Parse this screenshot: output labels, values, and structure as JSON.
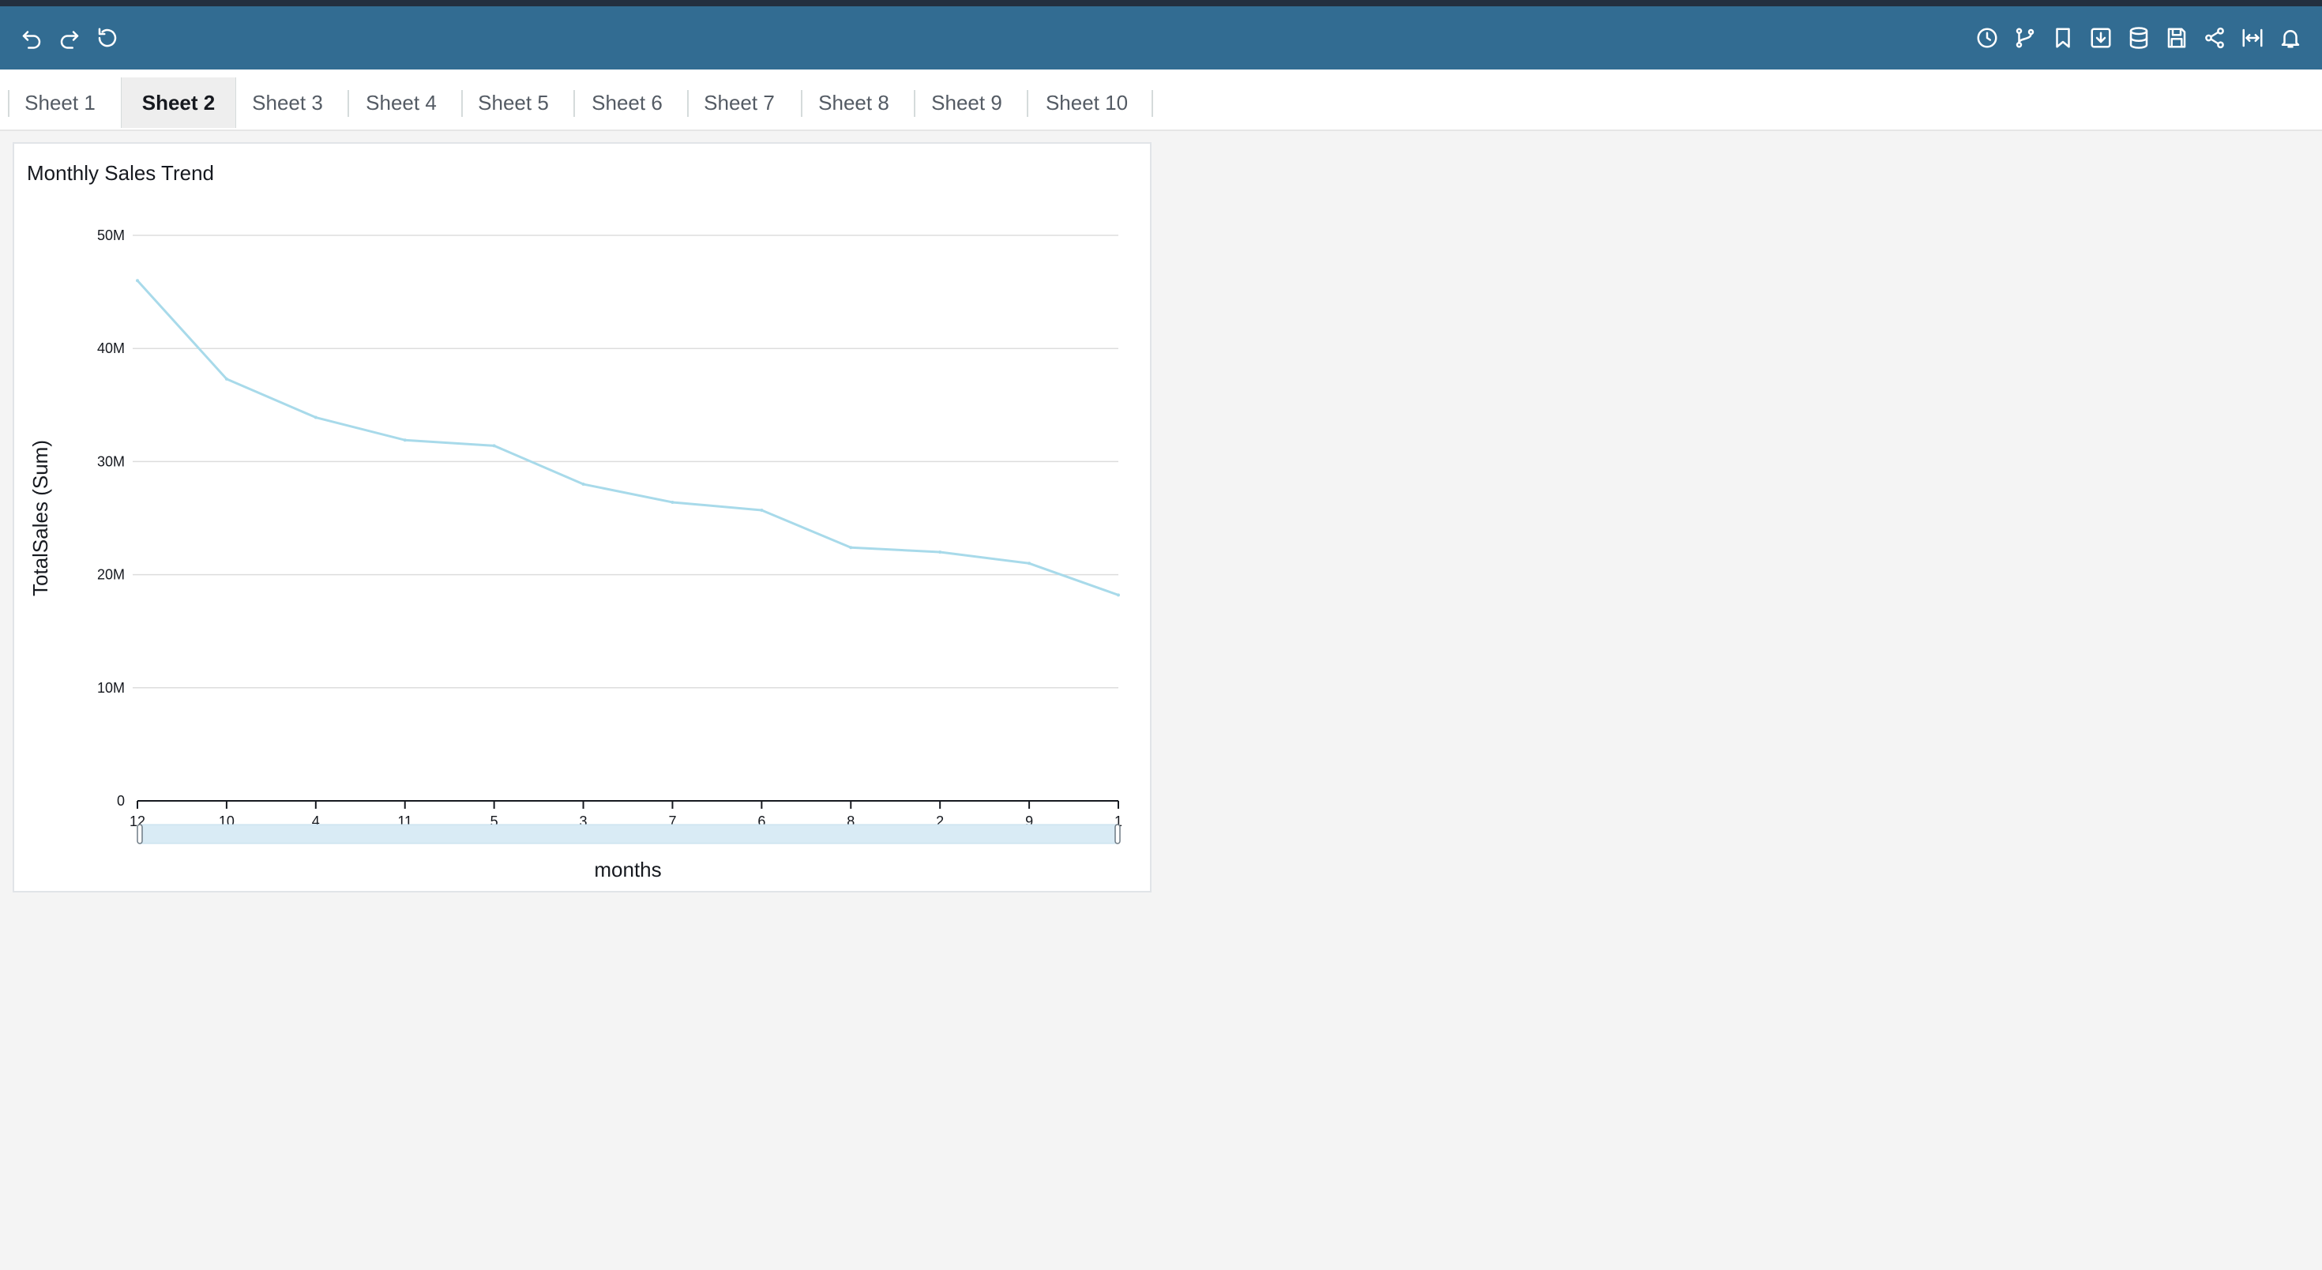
{
  "toolbar": {
    "left_icons": [
      "undo-icon",
      "redo-icon",
      "reset-icon"
    ],
    "right_icons": [
      "history-icon",
      "branch-icon",
      "bookmark-icon",
      "export-icon",
      "dataset-icon",
      "save-icon",
      "share-icon",
      "fit-width-icon",
      "alert-icon"
    ],
    "bg_color": "#326c92"
  },
  "tabs": [
    "Sheet 1",
    "Sheet 2",
    "Sheet 3",
    "Sheet 4",
    "Sheet 5",
    "Sheet 6",
    "Sheet 7",
    "Sheet 8",
    "Sheet 9",
    "Sheet 10"
  ],
  "active_tab": "Sheet 2",
  "visual": {
    "title": "Monthly Sales Trend"
  },
  "chart_data": {
    "type": "line",
    "title": "Monthly Sales Trend",
    "xlabel": "months",
    "ylabel": "TotalSales (Sum)",
    "categories": [
      "12",
      "10",
      "4",
      "11",
      "5",
      "3",
      "7",
      "6",
      "8",
      "2",
      "9",
      "1"
    ],
    "series": [
      {
        "values": [
          46000000,
          37300000,
          33900000,
          31900000,
          31400000,
          28000000,
          26400000,
          25700000,
          22400000,
          22000000,
          21000000,
          18200000
        ]
      }
    ],
    "y_ticks": [
      "0",
      "10M",
      "20M",
      "30M",
      "40M",
      "50M"
    ],
    "y_tick_values": [
      0,
      10000000,
      20000000,
      30000000,
      40000000,
      50000000
    ],
    "ylim": [
      0,
      50000000
    ],
    "grid": true,
    "line_color": "#a8daea",
    "scrollbar": true
  }
}
